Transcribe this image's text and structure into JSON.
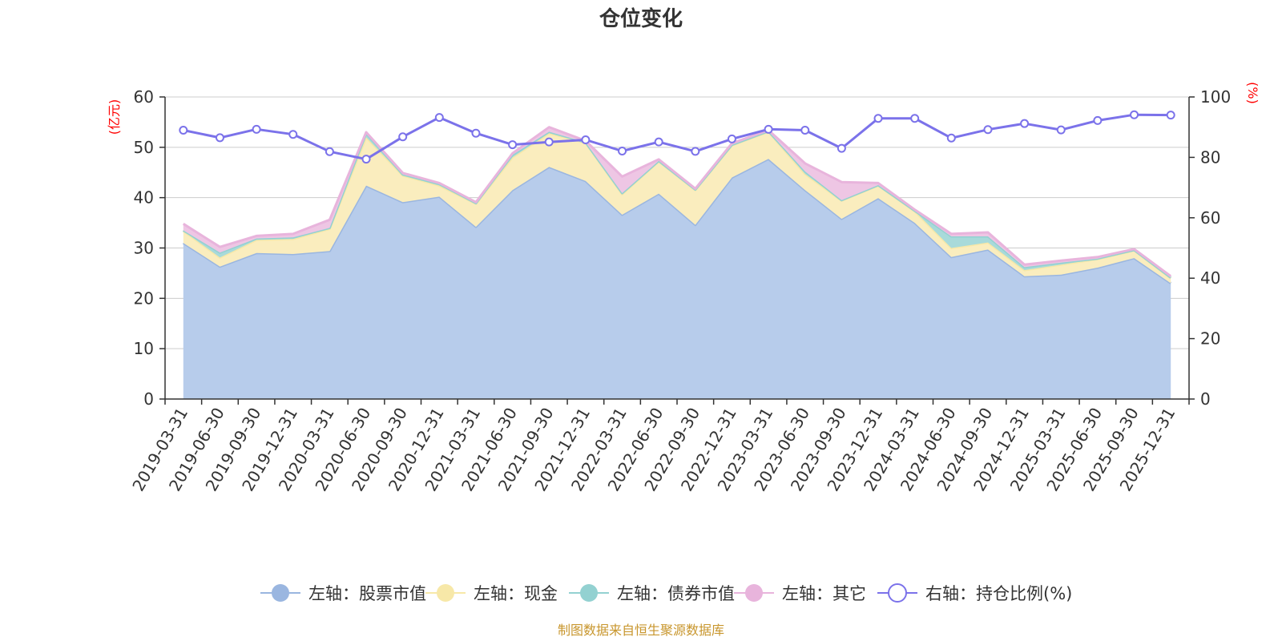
{
  "chart_data": {
    "type": "area",
    "title": "仓位变化",
    "source_note": "制图数据来自恒生聚源数据库",
    "categories": [
      "2019-03-31",
      "2019-06-30",
      "2019-09-30",
      "2019-12-31",
      "2020-03-31",
      "2020-06-30",
      "2020-09-30",
      "2020-12-31",
      "2021-03-31",
      "2021-06-30",
      "2021-09-30",
      "2021-12-31",
      "2022-03-31",
      "2022-06-30",
      "2022-09-30",
      "2022-12-31",
      "2023-03-31",
      "2023-06-30",
      "2023-09-30",
      "2023-12-31",
      "2024-03-31",
      "2024-06-30",
      "2024-09-30",
      "2024-12-31",
      "2025-03-31",
      "2025-06-30",
      "2025-09-30",
      "2025-12-31"
    ],
    "left_axis": {
      "unit": "(亿元)",
      "min": 0,
      "max": 60,
      "ticks": [
        0,
        10,
        20,
        30,
        40,
        50,
        60
      ]
    },
    "right_axis": {
      "unit": "(%)",
      "min": 0,
      "max": 100,
      "ticks": [
        0,
        20,
        40,
        60,
        80,
        100
      ]
    },
    "series": [
      {
        "name": "左轴：股票市值",
        "axis": "left",
        "stack": true,
        "color": "#9ab6e0",
        "fill": "#b7cceb",
        "values": [
          31.0,
          26.3,
          29.0,
          28.8,
          29.4,
          42.4,
          39.1,
          40.2,
          34.2,
          41.5,
          46.1,
          43.3,
          36.6,
          40.8,
          34.6,
          44.0,
          47.7,
          41.5,
          35.8,
          39.9,
          35.0,
          28.2,
          29.7,
          24.4,
          24.7,
          26.1,
          28.0,
          23.0
        ]
      },
      {
        "name": "左轴：现金",
        "axis": "left",
        "stack": true,
        "color": "#f7e8a8",
        "fill": "#faedbe",
        "values": [
          2.4,
          1.8,
          2.6,
          3.0,
          4.4,
          9.6,
          5.3,
          2.2,
          4.6,
          6.5,
          6.7,
          7.6,
          4.1,
          6.4,
          6.9,
          6.4,
          5.4,
          3.2,
          3.6,
          2.5,
          2.3,
          1.8,
          1.4,
          1.2,
          2.0,
          1.7,
          1.5,
          1.0
        ]
      },
      {
        "name": "左轴：债券市值",
        "axis": "left",
        "stack": true,
        "color": "#93d1d1",
        "fill": "#a8dada",
        "values": [
          0.1,
          1.0,
          0.3,
          0.3,
          0.2,
          0.8,
          0.2,
          0.3,
          0.1,
          0.5,
          0.3,
          0.1,
          0.2,
          0.1,
          0.1,
          0.1,
          0.1,
          0.5,
          0.1,
          0.1,
          0.1,
          2.3,
          1.2,
          0.6,
          0.4,
          0.1,
          0.1,
          0.1
        ]
      },
      {
        "name": "左轴：其它",
        "axis": "left",
        "stack": true,
        "color": "#e8b4dc",
        "fill": "#eec6e4",
        "values": [
          1.3,
          1.1,
          0.5,
          0.7,
          1.6,
          0.2,
          0.3,
          0.2,
          0.2,
          0.3,
          0.9,
          0.3,
          3.3,
          0.3,
          0.2,
          0.3,
          0.2,
          1.6,
          3.6,
          0.4,
          0.2,
          0.5,
          0.8,
          0.5,
          0.4,
          0.3,
          0.2,
          0.3
        ]
      },
      {
        "name": "右轴：持仓比例(%)",
        "axis": "right",
        "stack": false,
        "color": "#7b72ea",
        "values": [
          89.0,
          86.5,
          89.3,
          87.6,
          81.9,
          79.4,
          86.8,
          93.2,
          88.0,
          84.2,
          85.1,
          85.8,
          82.1,
          85.1,
          82.0,
          86.1,
          89.3,
          89.0,
          83.0,
          92.9,
          92.9,
          86.4,
          89.2,
          91.2,
          89.1,
          92.2,
          94.1,
          94.0
        ]
      }
    ]
  }
}
